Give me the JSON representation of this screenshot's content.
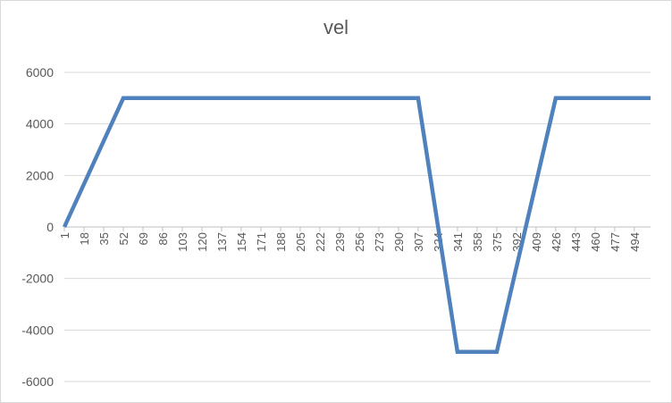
{
  "chart_data": {
    "type": "line",
    "title": "vel",
    "xlabel": "",
    "ylabel": "",
    "ylim": [
      -6000,
      6000
    ],
    "y_ticks": [
      6000,
      4000,
      2000,
      0,
      -2000,
      -4000,
      -6000
    ],
    "x_range": [
      1,
      508
    ],
    "x_tick_labels": [
      "1",
      "18",
      "35",
      "52",
      "69",
      "86",
      "103",
      "120",
      "137",
      "154",
      "171",
      "188",
      "205",
      "222",
      "239",
      "256",
      "273",
      "290",
      "307",
      "324",
      "341",
      "358",
      "375",
      "392",
      "409",
      "426",
      "443",
      "460",
      "477",
      "494"
    ],
    "grid": "horizontal major",
    "legend": "none",
    "series": [
      {
        "color": "#4f81bd",
        "x": [
          1,
          52,
          307,
          341,
          375,
          426,
          508
        ],
        "y": [
          0,
          5000,
          5000,
          -4850,
          -4850,
          5000,
          5000
        ]
      }
    ]
  }
}
